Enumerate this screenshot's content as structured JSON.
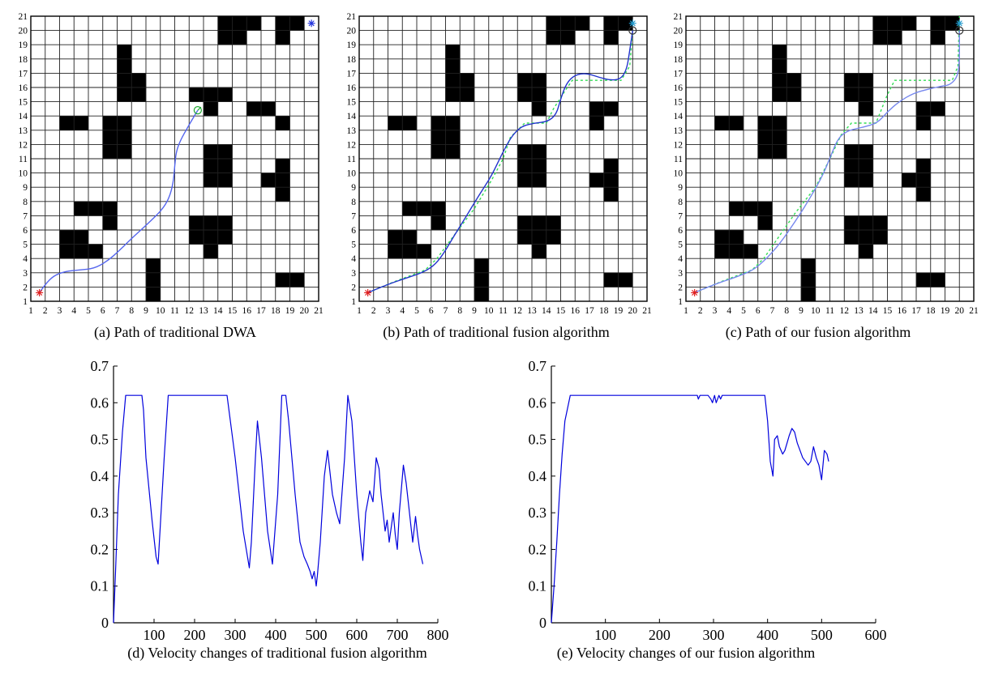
{
  "chart_data": [
    {
      "id": "a",
      "type": "grid-path",
      "caption": "(a) Path of traditional DWA",
      "xlim": [
        1,
        21
      ],
      "ylim": [
        1,
        21
      ],
      "xticks": [
        "1",
        "2",
        "3",
        "4",
        "5",
        "6",
        "7",
        "8",
        "9",
        "10",
        "11",
        "12",
        "13",
        "14",
        "15",
        "16",
        "17",
        "18",
        "19",
        "20",
        "21"
      ],
      "yticks": [
        "1",
        "2",
        "3",
        "4",
        "5",
        "6",
        "7",
        "8",
        "9",
        "10",
        "11",
        "12",
        "13",
        "14",
        "15",
        "16",
        "17",
        "18",
        "19",
        "20",
        "21"
      ],
      "start": [
        1.6,
        1.6
      ],
      "goal": [
        20.5,
        20.5
      ],
      "end_marker": [
        12.6,
        14.4
      ],
      "dwa_path": [
        [
          1.6,
          1.6
        ],
        [
          2.0,
          2.2
        ],
        [
          2.6,
          2.8
        ],
        [
          3.4,
          3.1
        ],
        [
          4.4,
          3.2
        ],
        [
          5.4,
          3.3
        ],
        [
          6.3,
          3.8
        ],
        [
          7.2,
          4.6
        ],
        [
          8.2,
          5.6
        ],
        [
          9.2,
          6.5
        ],
        [
          10.1,
          7.4
        ],
        [
          10.6,
          8.2
        ],
        [
          10.9,
          9.3
        ],
        [
          11.0,
          10.5
        ],
        [
          11.1,
          11.5
        ],
        [
          11.4,
          12.3
        ],
        [
          11.9,
          13.2
        ],
        [
          12.3,
          13.9
        ],
        [
          12.6,
          14.4
        ]
      ],
      "reference_path": [],
      "path_color": "#5566ee",
      "obstacle_color": "#000000"
    },
    {
      "id": "b",
      "type": "grid-path",
      "caption": "(b) Path of traditional fusion algorithm",
      "xlim": [
        1,
        21
      ],
      "ylim": [
        1,
        21
      ],
      "xticks": [
        "1",
        "2",
        "3",
        "4",
        "5",
        "6",
        "7",
        "8",
        "9",
        "10",
        "11",
        "12",
        "13",
        "14",
        "15",
        "16",
        "17",
        "18",
        "19",
        "20",
        "21"
      ],
      "yticks": [
        "1",
        "2",
        "3",
        "4",
        "5",
        "6",
        "7",
        "8",
        "9",
        "10",
        "11",
        "12",
        "13",
        "14",
        "15",
        "16",
        "17",
        "18",
        "19",
        "20",
        "21"
      ],
      "start": [
        1.6,
        1.6
      ],
      "goal": [
        20.0,
        20.5
      ],
      "end_marker": [
        20.0,
        20.0
      ],
      "dwa_path": [
        [
          1.6,
          1.6
        ],
        [
          3.0,
          2.2
        ],
        [
          4.5,
          2.7
        ],
        [
          5.6,
          3.1
        ],
        [
          6.3,
          3.6
        ],
        [
          6.9,
          4.4
        ],
        [
          7.6,
          5.6
        ],
        [
          8.4,
          6.9
        ],
        [
          9.3,
          8.4
        ],
        [
          10.2,
          9.8
        ],
        [
          10.9,
          11.3
        ],
        [
          11.6,
          12.6
        ],
        [
          12.3,
          13.3
        ],
        [
          13.2,
          13.5
        ],
        [
          14.1,
          13.6
        ],
        [
          14.7,
          14.1
        ],
        [
          15.0,
          15.2
        ],
        [
          15.4,
          16.3
        ],
        [
          16.0,
          16.9
        ],
        [
          16.8,
          17.0
        ],
        [
          17.7,
          16.7
        ],
        [
          18.5,
          16.5
        ],
        [
          19.2,
          16.6
        ],
        [
          19.6,
          17.3
        ],
        [
          19.8,
          18.6
        ],
        [
          20.0,
          20.0
        ]
      ],
      "reference_path": [
        [
          1.6,
          1.6
        ],
        [
          3.5,
          2.4
        ],
        [
          5.6,
          3.2
        ],
        [
          6.4,
          4.0
        ],
        [
          7.5,
          5.5
        ],
        [
          9.0,
          7.5
        ],
        [
          10.2,
          9.5
        ],
        [
          11.0,
          11.0
        ],
        [
          11.5,
          12.5
        ],
        [
          12.5,
          13.5
        ],
        [
          14.0,
          13.5
        ],
        [
          14.5,
          14.5
        ],
        [
          15.2,
          15.6
        ],
        [
          15.8,
          16.5
        ],
        [
          17.0,
          16.5
        ],
        [
          19.2,
          16.5
        ],
        [
          19.8,
          17.5
        ],
        [
          20.0,
          20.0
        ]
      ],
      "path_color": "#2233cc",
      "reference_color": "#33dd55",
      "obstacle_color": "#000000"
    },
    {
      "id": "c",
      "type": "grid-path",
      "caption": "(c) Path of our fusion algorithm",
      "xlim": [
        1,
        21
      ],
      "ylim": [
        1,
        21
      ],
      "xticks": [
        "1",
        "2",
        "3",
        "4",
        "5",
        "6",
        "7",
        "8",
        "9",
        "10",
        "11",
        "12",
        "13",
        "14",
        "15",
        "16",
        "17",
        "18",
        "19",
        "20",
        "21"
      ],
      "yticks": [
        "1",
        "2",
        "3",
        "4",
        "5",
        "6",
        "7",
        "8",
        "9",
        "10",
        "11",
        "12",
        "13",
        "14",
        "15",
        "16",
        "17",
        "18",
        "19",
        "20",
        "21"
      ],
      "start": [
        1.6,
        1.6
      ],
      "goal": [
        20.0,
        20.5
      ],
      "end_marker": [
        20.0,
        20.0
      ],
      "dwa_path": [
        [
          1.6,
          1.6
        ],
        [
          3.0,
          2.2
        ],
        [
          4.5,
          2.7
        ],
        [
          5.7,
          3.2
        ],
        [
          6.5,
          3.9
        ],
        [
          7.5,
          5.0
        ],
        [
          8.6,
          6.6
        ],
        [
          9.6,
          8.2
        ],
        [
          10.5,
          9.8
        ],
        [
          11.1,
          11.3
        ],
        [
          11.6,
          12.5
        ],
        [
          12.3,
          13.0
        ],
        [
          13.3,
          13.2
        ],
        [
          14.3,
          13.5
        ],
        [
          15.0,
          14.3
        ],
        [
          15.8,
          15.0
        ],
        [
          16.8,
          15.6
        ],
        [
          17.9,
          15.9
        ],
        [
          18.8,
          16.1
        ],
        [
          19.4,
          16.2
        ],
        [
          19.9,
          16.8
        ],
        [
          20.0,
          18.0
        ],
        [
          20.0,
          20.0
        ]
      ],
      "reference_path": [
        [
          1.6,
          1.6
        ],
        [
          3.5,
          2.4
        ],
        [
          5.6,
          3.2
        ],
        [
          6.4,
          4.0
        ],
        [
          7.3,
          5.3
        ],
        [
          8.6,
          7.2
        ],
        [
          10.0,
          9.0
        ],
        [
          11.0,
          11.0
        ],
        [
          11.8,
          12.7
        ],
        [
          12.5,
          13.5
        ],
        [
          14.2,
          13.5
        ],
        [
          15.0,
          15.5
        ],
        [
          15.5,
          16.5
        ],
        [
          17.5,
          16.5
        ],
        [
          19.5,
          16.5
        ],
        [
          19.9,
          17.5
        ],
        [
          20.0,
          21.0
        ]
      ],
      "path_color": "#7788ee",
      "reference_color": "#33dd55",
      "obstacle_color": "#000000"
    },
    {
      "id": "d",
      "type": "line",
      "caption": "(d) Velocity changes of traditional fusion algorithm",
      "xlim": [
        0,
        800
      ],
      "ylim": [
        0,
        0.7
      ],
      "xticks": [
        "100",
        "200",
        "300",
        "400",
        "500",
        "600",
        "700",
        "800"
      ],
      "yticks": [
        "0",
        "0.1",
        "0.2",
        "0.3",
        "0.4",
        "0.5",
        "0.6",
        "0.7"
      ],
      "series": [
        {
          "color": "#0000dd",
          "x": [
            0,
            5,
            12,
            22,
            30,
            70,
            74,
            80,
            95,
            105,
            110,
            125,
            135,
            280,
            300,
            320,
            335,
            340,
            350,
            355,
            365,
            380,
            392,
            405,
            415,
            425,
            432,
            448,
            460,
            470,
            478,
            485,
            490,
            495,
            500,
            503,
            510,
            520,
            528,
            540,
            550,
            558,
            570,
            578,
            588,
            600,
            610,
            615,
            622,
            632,
            640,
            648,
            655,
            660,
            670,
            675,
            680,
            690,
            695,
            700,
            705,
            715,
            722,
            730,
            738,
            745,
            750,
            755,
            763
          ],
          "y": [
            0.0,
            0.14,
            0.35,
            0.52,
            0.62,
            0.62,
            0.58,
            0.45,
            0.28,
            0.18,
            0.16,
            0.45,
            0.62,
            0.62,
            0.45,
            0.25,
            0.15,
            0.22,
            0.45,
            0.55,
            0.45,
            0.25,
            0.16,
            0.35,
            0.62,
            0.62,
            0.55,
            0.35,
            0.22,
            0.18,
            0.16,
            0.14,
            0.12,
            0.14,
            0.1,
            0.13,
            0.22,
            0.4,
            0.47,
            0.35,
            0.3,
            0.27,
            0.45,
            0.62,
            0.55,
            0.35,
            0.22,
            0.17,
            0.3,
            0.36,
            0.33,
            0.45,
            0.42,
            0.35,
            0.25,
            0.28,
            0.22,
            0.3,
            0.24,
            0.2,
            0.3,
            0.43,
            0.38,
            0.3,
            0.22,
            0.29,
            0.24,
            0.2,
            0.16
          ]
        }
      ]
    },
    {
      "id": "e",
      "type": "line",
      "caption": "(e) Velocity changes of our fusion algorithm",
      "xlim": [
        0,
        600
      ],
      "ylim": [
        0,
        0.7
      ],
      "xticks": [
        "100",
        "200",
        "300",
        "400",
        "500",
        "600"
      ],
      "yticks": [
        "0",
        "0.1",
        "0.2",
        "0.3",
        "0.4",
        "0.5",
        "0.6",
        "0.7"
      ],
      "series": [
        {
          "color": "#0000dd",
          "x": [
            0,
            5,
            10,
            15,
            20,
            25,
            35,
            270,
            272,
            275,
            290,
            295,
            298,
            302,
            305,
            310,
            313,
            316,
            320,
            395,
            400,
            405,
            410,
            413,
            418,
            422,
            428,
            432,
            436,
            440,
            445,
            450,
            455,
            460,
            465,
            470,
            475,
            480,
            485,
            490,
            495,
            500,
            505,
            510,
            513
          ],
          "y": [
            0.0,
            0.1,
            0.22,
            0.35,
            0.46,
            0.55,
            0.62,
            0.62,
            0.61,
            0.62,
            0.62,
            0.61,
            0.6,
            0.62,
            0.6,
            0.62,
            0.61,
            0.62,
            0.62,
            0.62,
            0.55,
            0.44,
            0.4,
            0.5,
            0.51,
            0.48,
            0.46,
            0.47,
            0.49,
            0.51,
            0.53,
            0.52,
            0.49,
            0.47,
            0.45,
            0.44,
            0.43,
            0.44,
            0.48,
            0.45,
            0.43,
            0.39,
            0.47,
            0.46,
            0.44
          ]
        }
      ]
    }
  ]
}
